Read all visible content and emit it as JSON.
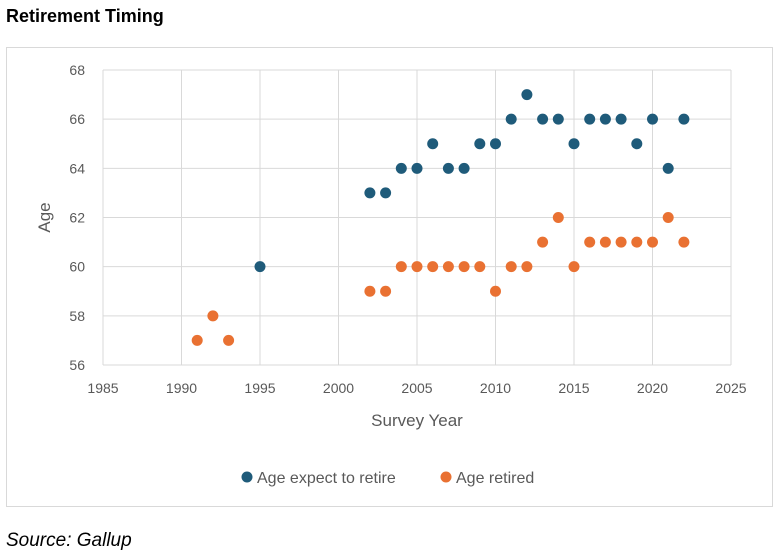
{
  "title": "Retirement Timing",
  "source": "Source: Gallup",
  "chart_data": {
    "type": "scatter",
    "xlabel": "Survey Year",
    "ylabel": "Age",
    "xlim": [
      1985,
      2025
    ],
    "ylim": [
      56,
      68
    ],
    "xticks": [
      1985,
      1990,
      1995,
      2000,
      2005,
      2010,
      2015,
      2020,
      2025
    ],
    "yticks": [
      56,
      58,
      60,
      62,
      64,
      66,
      68
    ],
    "grid": true,
    "legend_position": "bottom",
    "series": [
      {
        "name": "Age expect to retire",
        "color": "#1f5b7a",
        "points": [
          [
            1995,
            60
          ],
          [
            2002,
            63
          ],
          [
            2003,
            63
          ],
          [
            2004,
            64
          ],
          [
            2005,
            64
          ],
          [
            2006,
            65
          ],
          [
            2007,
            64
          ],
          [
            2008,
            64
          ],
          [
            2009,
            65
          ],
          [
            2010,
            65
          ],
          [
            2011,
            66
          ],
          [
            2012,
            67
          ],
          [
            2013,
            66
          ],
          [
            2014,
            66
          ],
          [
            2015,
            65
          ],
          [
            2016,
            66
          ],
          [
            2017,
            66
          ],
          [
            2018,
            66
          ],
          [
            2019,
            65
          ],
          [
            2020,
            66
          ],
          [
            2021,
            64
          ],
          [
            2022,
            66
          ]
        ]
      },
      {
        "name": "Age retired",
        "color": "#e97132",
        "points": [
          [
            1991,
            57
          ],
          [
            1992,
            58
          ],
          [
            1993,
            57
          ],
          [
            2002,
            59
          ],
          [
            2003,
            59
          ],
          [
            2004,
            60
          ],
          [
            2005,
            60
          ],
          [
            2006,
            60
          ],
          [
            2007,
            60
          ],
          [
            2008,
            60
          ],
          [
            2009,
            60
          ],
          [
            2010,
            59
          ],
          [
            2011,
            60
          ],
          [
            2012,
            60
          ],
          [
            2013,
            61
          ],
          [
            2014,
            62
          ],
          [
            2015,
            60
          ],
          [
            2016,
            61
          ],
          [
            2017,
            61
          ],
          [
            2018,
            61
          ],
          [
            2019,
            61
          ],
          [
            2020,
            61
          ],
          [
            2021,
            62
          ],
          [
            2022,
            61
          ]
        ]
      }
    ]
  }
}
